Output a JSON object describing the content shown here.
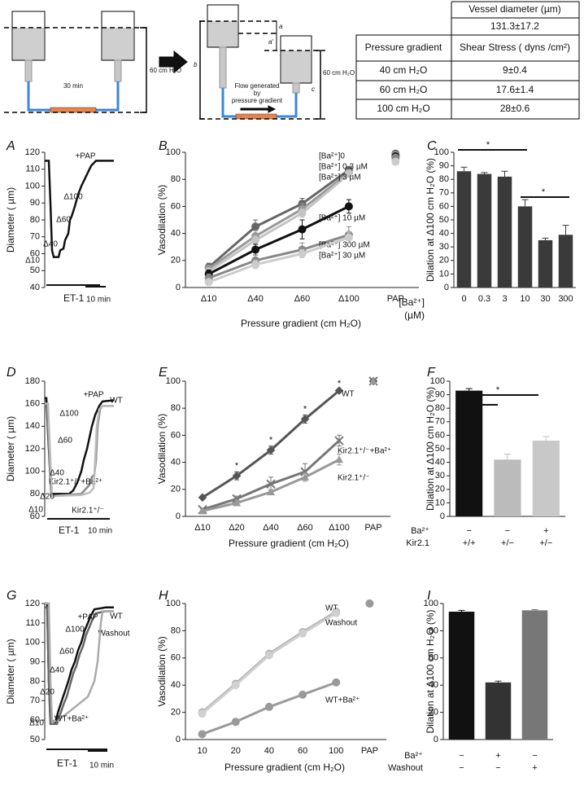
{
  "diagram": {
    "left_duration": "30 min",
    "left_height": "60 cm H₂O",
    "a": "a",
    "a_prime": "a'",
    "b": "b",
    "c": "c",
    "right_height": "60 cm H₂O",
    "flow_label": [
      "Flow generated",
      "by",
      "pressure gradient"
    ]
  },
  "table": {
    "header": [
      "Vessel diameter (µm)",
      "131.3±17.2"
    ],
    "columns": [
      "Pressure gradient",
      "Shear Stress ( dyns /cm²)"
    ],
    "rows": [
      [
        "40 cm H₂O",
        "9±0.4"
      ],
      [
        "60 cm H₂O",
        "17.6±1.4"
      ],
      [
        "100 cm H₂O",
        "28±0.6"
      ]
    ]
  },
  "chart_data": [
    {
      "panel": "A",
      "type": "line",
      "ylabel": "Diameter ( µm)",
      "ylim": [
        40,
        120
      ],
      "yticks": [
        40,
        50,
        60,
        70,
        80,
        90,
        100,
        110,
        120
      ],
      "xlim": [
        0,
        34
      ],
      "series": [
        {
          "color": "#111111",
          "x": [
            0,
            2,
            2.8,
            3.6,
            4.4,
            6.8,
            7.6,
            9.2,
            10,
            11.6,
            12.4,
            13.2,
            14.8,
            16.4,
            18,
            19.6,
            21.2,
            22.8,
            25.2,
            27.6,
            34
          ],
          "values": [
            115,
            115,
            90,
            62,
            58,
            58,
            62,
            63,
            68,
            72,
            80,
            82,
            88,
            95,
            100,
            104,
            108,
            112,
            115,
            115,
            115
          ]
        }
      ],
      "annotations": [
        "+PAP",
        "Δ100",
        "Δ60",
        "Δ40",
        "Δ10"
      ],
      "bar_label": "ET-1",
      "scale_label": "10 min"
    },
    {
      "panel": "B",
      "type": "line",
      "ylabel": "Vasodilation (%)",
      "xlabel": "Pressure gradient (cm H₂O)",
      "ylim": [
        0,
        100
      ],
      "yticks": [
        0,
        20,
        40,
        60,
        80,
        100
      ],
      "categories": [
        "Δ10",
        "Δ40",
        "Δ60",
        "Δ100",
        "PAP"
      ],
      "series": [
        {
          "name": "[Ba²⁺]0",
          "color": "#666666",
          "values": [
            15,
            45,
            62,
            87,
            null
          ],
          "errors": [
            3,
            5,
            4,
            2,
            null
          ],
          "pap_value": 99
        },
        {
          "name": "[Ba²⁺] 0.3 µM",
          "color": "#999999",
          "values": [
            14,
            38,
            58,
            85,
            null
          ],
          "errors": [
            2,
            4,
            4,
            2,
            null
          ],
          "pap_value": 98
        },
        {
          "name": "[Ba²⁺] 3 µM",
          "color": "#c4c4c4",
          "values": [
            12,
            35,
            55,
            84,
            null
          ],
          "errors": [
            2,
            3,
            3,
            2,
            null
          ],
          "pap_value": 95
        },
        {
          "name": "[Ba²⁺] 10 µM",
          "color": "#111111",
          "values": [
            10,
            28,
            43,
            60,
            null
          ],
          "errors": [
            3,
            4,
            7,
            5,
            null
          ],
          "pap_value": 97
        },
        {
          "name": "[Ba²⁺] 300 µM",
          "color": "#888888",
          "values": [
            7,
            20,
            28,
            39,
            null
          ],
          "errors": [
            3,
            4,
            5,
            6,
            null
          ],
          "pap_value": 96
        },
        {
          "name": "[Ba²⁺] 30 µM",
          "color": "#cccccc",
          "values": [
            4,
            17,
            25,
            37,
            null
          ],
          "errors": [
            2,
            3,
            3,
            4,
            null
          ],
          "pap_value": 93
        }
      ]
    },
    {
      "panel": "C",
      "type": "bar",
      "ylabel": "Dilation at Δ100 cm H₂O (%)",
      "xlabel": [
        "[Ba²⁺]",
        "(µM)"
      ],
      "ylim": [
        0,
        100
      ],
      "yticks": [
        0,
        10,
        20,
        30,
        40,
        50,
        60,
        70,
        80,
        90,
        100
      ],
      "categories": [
        "0",
        "0.3",
        "3",
        "10",
        "30",
        "300"
      ],
      "values": [
        86,
        84,
        82,
        60,
        35,
        39
      ],
      "errors": [
        3,
        1,
        4,
        5,
        1.5,
        7
      ],
      "color": "#3a3a3a",
      "annotations": [
        "*",
        "*"
      ]
    },
    {
      "panel": "D",
      "type": "line",
      "ylabel": "Diameter ( µm)",
      "ylim": [
        60,
        180
      ],
      "yticks": [
        60,
        80,
        100,
        120,
        140,
        160,
        180
      ],
      "xlim": [
        0,
        34
      ],
      "series": [
        {
          "name": "WT",
          "color": "#111111",
          "x": [
            0,
            0.8,
            2,
            3.2,
            12,
            14,
            16,
            18,
            19.2,
            20.8,
            22,
            23.2,
            24.8,
            26.8,
            28.4,
            34
          ],
          "values": [
            165,
            165,
            120,
            80,
            80,
            83,
            90,
            100,
            110,
            120,
            130,
            140,
            150,
            158,
            162,
            163
          ]
        },
        {
          "name": "Kir2.1⁺/⁻+Ba²⁺",
          "color": "#888888",
          "x": [
            0,
            1.2,
            2.4,
            3.2,
            18,
            22,
            23.2,
            24.4,
            25.2,
            26,
            27.2,
            28.4,
            34
          ],
          "values": [
            160,
            160,
            110,
            78,
            80,
            88,
            95,
            97,
            110,
            140,
            155,
            158,
            158
          ]
        },
        {
          "name": "Kir2.1⁺/⁻",
          "color": "#bbbbbb",
          "x": [
            0,
            1.6,
            2.8,
            3.6,
            18,
            22,
            24,
            24.8,
            25.6,
            26.8,
            28.4,
            34
          ],
          "values": [
            160,
            160,
            110,
            78,
            79,
            81,
            85,
            110,
            140,
            155,
            158,
            158
          ]
        }
      ],
      "annotations": [
        "+PAP",
        "Δ100",
        "Δ60",
        "Δ40",
        "Δ20",
        "Δ10"
      ],
      "bar_label": "ET-1",
      "scale_label": "10 min"
    },
    {
      "panel": "E",
      "type": "line",
      "ylabel": "Vasodilation (%)",
      "xlabel": "Pressure gradient (cm H₂O)",
      "ylim": [
        0,
        100
      ],
      "yticks": [
        0,
        20,
        40,
        60,
        80,
        100
      ],
      "categories": [
        "Δ10",
        "Δ20",
        "Δ40",
        "Δ60",
        "Δ100",
        "PAP"
      ],
      "series": [
        {
          "name": "WT",
          "color": "#555555",
          "marker": "diamond",
          "values": [
            14,
            30,
            49,
            72,
            93,
            null
          ],
          "errors": [
            1,
            3,
            3,
            3,
            1,
            null
          ],
          "pap_value": 100
        },
        {
          "name": "Kir2.1⁺/⁻+Ba²⁺",
          "color": "#777777",
          "marker": "cross",
          "values": [
            5,
            13,
            24,
            33,
            56,
            null
          ],
          "errors": [
            1,
            2,
            5,
            6,
            4,
            null
          ],
          "pap_value": 100
        },
        {
          "name": "Kir2.1⁺/⁻",
          "color": "#999999",
          "marker": "triangle",
          "values": [
            4,
            10,
            18,
            29,
            42,
            null
          ],
          "errors": [
            1,
            2,
            2,
            3,
            4,
            null
          ],
          "pap_value": 100
        }
      ],
      "annotations": [
        "*",
        "*",
        "*",
        "*"
      ]
    },
    {
      "panel": "F",
      "type": "bar",
      "ylabel": "Dilation at Δ100 cm H₂O (%)",
      "ylim": [
        0,
        100
      ],
      "yticks": [
        0,
        10,
        20,
        30,
        40,
        50,
        60,
        70,
        80,
        90,
        100
      ],
      "values": [
        93,
        42,
        56
      ],
      "errors": [
        1.5,
        4,
        3
      ],
      "colors": [
        "#111111",
        "#bbbbbb",
        "#c8c8c8"
      ],
      "annotations": [
        "*",
        "*"
      ],
      "rows": [
        {
          "label": "Ba²⁺",
          "values": [
            "−",
            "−",
            "+"
          ]
        },
        {
          "label": "Kir2.1",
          "values": [
            "+/+",
            "+/−",
            "+/−"
          ]
        }
      ]
    },
    {
      "panel": "G",
      "type": "line",
      "ylabel": "Diameter ( µm)",
      "ylim": [
        50,
        120
      ],
      "yticks": [
        50,
        60,
        70,
        80,
        90,
        100,
        110,
        120
      ],
      "xlim": [
        0,
        34
      ],
      "series": [
        {
          "name": "WT",
          "color": "#111111",
          "x": [
            0,
            1.2,
            2,
            2.8,
            5.2,
            6.8,
            8.4,
            10,
            11.6,
            13.2,
            14.8,
            16.4,
            18,
            19.6,
            21.2,
            22.8,
            24.4,
            30,
            34
          ],
          "values": [
            120,
            120,
            80,
            60,
            59,
            65,
            70,
            75,
            80,
            86,
            90,
            96,
            100,
            106,
            110,
            114,
            117,
            118,
            118
          ]
        },
        {
          "name": "Washout",
          "color": "#666666",
          "x": [
            0,
            1.2,
            2,
            2.8,
            6,
            7.6,
            9.2,
            10.8,
            12.4,
            14,
            15.6,
            17.2,
            18.8,
            20.4,
            22,
            23.6,
            25.2,
            30,
            34
          ],
          "values": [
            118,
            118,
            80,
            58,
            58,
            63,
            68,
            72,
            78,
            84,
            88,
            94,
            98,
            104,
            108,
            112,
            115,
            116,
            116
          ]
        },
        {
          "name": "WT+Ba²⁺",
          "color": "#aaaaaa",
          "x": [
            0,
            2,
            2.8,
            3.6,
            6.8,
            9.2,
            11.6,
            14,
            16.4,
            18.8,
            21.2,
            22.8,
            24.4,
            26,
            27.6,
            28.4,
            34
          ],
          "values": [
            120,
            120,
            80,
            59,
            60,
            62,
            64,
            66,
            68,
            70,
            72,
            76,
            80,
            90,
            110,
            116,
            116
          ]
        }
      ],
      "annotations": [
        "+PAP",
        "Δ100",
        "Δ60",
        "Δ40",
        "Δ20",
        "Δ10"
      ],
      "bar_label": "ET-1",
      "scale_label": "10 min"
    },
    {
      "panel": "H",
      "type": "line",
      "ylabel": "Vasodilation (%)",
      "xlabel": "Pressure gradient (cm H₂O)",
      "ylim": [
        0,
        100
      ],
      "yticks": [
        0,
        20,
        40,
        60,
        80,
        100
      ],
      "categories": [
        "10",
        "20",
        "40",
        "60",
        "100",
        "PAP"
      ],
      "series": [
        {
          "name": "WT",
          "color": "#b0b0b0",
          "values": [
            20,
            41,
            63,
            79,
            94,
            null
          ],
          "pap_value": 100
        },
        {
          "name": "Washout",
          "color": "#d0d0d0",
          "values": [
            19,
            40,
            62,
            78,
            93,
            null
          ],
          "pap_value": 100
        },
        {
          "name": "WT+Ba²⁺",
          "color": "#9a9a9a",
          "values": [
            4,
            13,
            24,
            33,
            42,
            null
          ],
          "pap_value": 100
        }
      ]
    },
    {
      "panel": "I",
      "type": "bar",
      "ylabel": "Dilation at Δ100 cm H₂O (%)",
      "ylim": [
        0,
        100
      ],
      "yticks": [
        0,
        20,
        40,
        60,
        80,
        100
      ],
      "values": [
        94,
        42,
        95
      ],
      "errors": [
        1,
        1,
        0.5
      ],
      "colors": [
        "#111111",
        "#333333",
        "#777777"
      ],
      "rows": [
        {
          "label": "Ba²⁺",
          "values": [
            "−",
            "+",
            "−"
          ]
        },
        {
          "label": "Washout",
          "values": [
            "−",
            "−",
            "+"
          ]
        }
      ]
    }
  ]
}
